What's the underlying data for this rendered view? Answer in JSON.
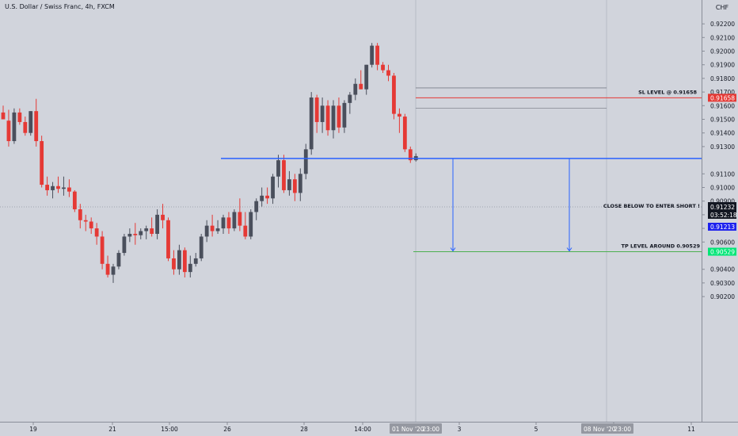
{
  "header": {
    "symbol_title": "U.S. Dollar / Swiss Franc, 4h, FXCM"
  },
  "price_axis": {
    "currency": "CHF",
    "ticks": [
      "0.92200",
      "0.92100",
      "0.92000",
      "0.91900",
      "0.91800",
      "0.91700",
      "0.91600",
      "0.91500",
      "0.91400",
      "0.91300",
      "0.91100",
      "0.91000",
      "0.90900",
      "0.90800",
      "0.90700",
      "0.90600",
      "0.90400",
      "0.90300",
      "0.90200"
    ]
  },
  "time_axis": {
    "ticks": [
      "19",
      "21",
      "15:00",
      "26",
      "28",
      "14:00",
      "3",
      "5",
      "9",
      "11"
    ],
    "badges": [
      {
        "label": "01 Nov '20",
        "time": "23:00"
      },
      {
        "label": "08 Nov '20",
        "time": "23:00"
      }
    ],
    "hidden_tick": "Nov"
  },
  "annotations": {
    "sl_label": "SL LEVEL @ 0.91658",
    "entry_label": "CLOSE BELOW TO ENTER SHORT !",
    "tp_label": "TP LEVEL AROUND 0.90529"
  },
  "price_tags": {
    "sl": "0.91658",
    "last": "0.91232",
    "countdown": "03:52:18",
    "entry": "0.91213",
    "tp": "0.90529"
  },
  "colors": {
    "background": "#d1d4dc",
    "bull": "#4a4f5c",
    "bear": "#e53935",
    "entry_line": "#2962ff",
    "sl_line": "#e53935",
    "tp_line": "#4caf50"
  },
  "chart_data": {
    "type": "candlestick",
    "title": "U.S. Dollar / Swiss Franc, 4h, FXCM",
    "ylim": [
      0.9014,
      0.9232
    ],
    "levels": {
      "stop_loss": 0.91658,
      "entry": 0.91213,
      "take_profit": 0.90529,
      "last_price": 0.91232,
      "upper_range": 0.9173,
      "lower_range": 0.9158
    },
    "candles": [
      {
        "o": 0.9155,
        "h": 0.916,
        "l": 0.915,
        "c": 0.915
      },
      {
        "o": 0.9149,
        "h": 0.9157,
        "l": 0.913,
        "c": 0.9134
      },
      {
        "o": 0.9134,
        "h": 0.9158,
        "l": 0.9132,
        "c": 0.9155
      },
      {
        "o": 0.9155,
        "h": 0.9158,
        "l": 0.9146,
        "c": 0.9148
      },
      {
        "o": 0.9148,
        "h": 0.9152,
        "l": 0.9138,
        "c": 0.914
      },
      {
        "o": 0.914,
        "h": 0.9156,
        "l": 0.9138,
        "c": 0.9156
      },
      {
        "o": 0.9156,
        "h": 0.9165,
        "l": 0.913,
        "c": 0.9134
      },
      {
        "o": 0.9134,
        "h": 0.9138,
        "l": 0.91,
        "c": 0.9102
      },
      {
        "o": 0.9102,
        "h": 0.9108,
        "l": 0.9094,
        "c": 0.9098
      },
      {
        "o": 0.9098,
        "h": 0.9104,
        "l": 0.9092,
        "c": 0.9101
      },
      {
        "o": 0.9101,
        "h": 0.9108,
        "l": 0.9096,
        "c": 0.9099
      },
      {
        "o": 0.9099,
        "h": 0.9108,
        "l": 0.9094,
        "c": 0.91
      },
      {
        "o": 0.91,
        "h": 0.9106,
        "l": 0.9093,
        "c": 0.9097
      },
      {
        "o": 0.9097,
        "h": 0.9098,
        "l": 0.9082,
        "c": 0.9084
      },
      {
        "o": 0.9084,
        "h": 0.9088,
        "l": 0.907,
        "c": 0.9076
      },
      {
        "o": 0.9076,
        "h": 0.908,
        "l": 0.9068,
        "c": 0.9075
      },
      {
        "o": 0.9075,
        "h": 0.9078,
        "l": 0.9066,
        "c": 0.907
      },
      {
        "o": 0.907,
        "h": 0.9074,
        "l": 0.9058,
        "c": 0.9064
      },
      {
        "o": 0.9064,
        "h": 0.9068,
        "l": 0.904,
        "c": 0.9044
      },
      {
        "o": 0.9044,
        "h": 0.905,
        "l": 0.9034,
        "c": 0.9036
      },
      {
        "o": 0.9036,
        "h": 0.9044,
        "l": 0.903,
        "c": 0.9042
      },
      {
        "o": 0.9042,
        "h": 0.9054,
        "l": 0.904,
        "c": 0.9052
      },
      {
        "o": 0.9052,
        "h": 0.9066,
        "l": 0.905,
        "c": 0.9064
      },
      {
        "o": 0.9064,
        "h": 0.907,
        "l": 0.906,
        "c": 0.9066
      },
      {
        "o": 0.9066,
        "h": 0.9074,
        "l": 0.9058,
        "c": 0.9065
      },
      {
        "o": 0.9065,
        "h": 0.907,
        "l": 0.9062,
        "c": 0.9068
      },
      {
        "o": 0.9068,
        "h": 0.9072,
        "l": 0.9062,
        "c": 0.907
      },
      {
        "o": 0.907,
        "h": 0.9078,
        "l": 0.9064,
        "c": 0.9066
      },
      {
        "o": 0.9066,
        "h": 0.9084,
        "l": 0.9062,
        "c": 0.908
      },
      {
        "o": 0.908,
        "h": 0.9088,
        "l": 0.907,
        "c": 0.9076
      },
      {
        "o": 0.9076,
        "h": 0.9078,
        "l": 0.9046,
        "c": 0.9048
      },
      {
        "o": 0.9048,
        "h": 0.9054,
        "l": 0.9036,
        "c": 0.904
      },
      {
        "o": 0.904,
        "h": 0.9058,
        "l": 0.9036,
        "c": 0.9054
      },
      {
        "o": 0.9054,
        "h": 0.9056,
        "l": 0.9034,
        "c": 0.9038
      },
      {
        "o": 0.9038,
        "h": 0.905,
        "l": 0.9034,
        "c": 0.9044
      },
      {
        "o": 0.9044,
        "h": 0.9052,
        "l": 0.9042,
        "c": 0.9048
      },
      {
        "o": 0.9048,
        "h": 0.9066,
        "l": 0.9046,
        "c": 0.9064
      },
      {
        "o": 0.9064,
        "h": 0.9076,
        "l": 0.906,
        "c": 0.9072
      },
      {
        "o": 0.9072,
        "h": 0.908,
        "l": 0.9064,
        "c": 0.9068
      },
      {
        "o": 0.9068,
        "h": 0.9076,
        "l": 0.9066,
        "c": 0.907
      },
      {
        "o": 0.907,
        "h": 0.908,
        "l": 0.9066,
        "c": 0.9078
      },
      {
        "o": 0.9078,
        "h": 0.9082,
        "l": 0.9066,
        "c": 0.907
      },
      {
        "o": 0.907,
        "h": 0.9084,
        "l": 0.9068,
        "c": 0.9082
      },
      {
        "o": 0.9082,
        "h": 0.9092,
        "l": 0.9068,
        "c": 0.9072
      },
      {
        "o": 0.9072,
        "h": 0.9082,
        "l": 0.9062,
        "c": 0.9064
      },
      {
        "o": 0.9064,
        "h": 0.9084,
        "l": 0.9062,
        "c": 0.9082
      },
      {
        "o": 0.9082,
        "h": 0.9092,
        "l": 0.9076,
        "c": 0.909
      },
      {
        "o": 0.909,
        "h": 0.91,
        "l": 0.9086,
        "c": 0.9094
      },
      {
        "o": 0.9094,
        "h": 0.91,
        "l": 0.9088,
        "c": 0.9092
      },
      {
        "o": 0.9092,
        "h": 0.911,
        "l": 0.9088,
        "c": 0.9108
      },
      {
        "o": 0.9108,
        "h": 0.9124,
        "l": 0.91,
        "c": 0.912
      },
      {
        "o": 0.912,
        "h": 0.9124,
        "l": 0.9096,
        "c": 0.9098
      },
      {
        "o": 0.9098,
        "h": 0.9112,
        "l": 0.9094,
        "c": 0.9106
      },
      {
        "o": 0.9106,
        "h": 0.911,
        "l": 0.909,
        "c": 0.9096
      },
      {
        "o": 0.9096,
        "h": 0.9114,
        "l": 0.909,
        "c": 0.911
      },
      {
        "o": 0.911,
        "h": 0.9132,
        "l": 0.9106,
        "c": 0.9128
      },
      {
        "o": 0.9128,
        "h": 0.917,
        "l": 0.9124,
        "c": 0.9166
      },
      {
        "o": 0.9166,
        "h": 0.9168,
        "l": 0.914,
        "c": 0.9148
      },
      {
        "o": 0.9148,
        "h": 0.9166,
        "l": 0.914,
        "c": 0.916
      },
      {
        "o": 0.916,
        "h": 0.9164,
        "l": 0.9138,
        "c": 0.9142
      },
      {
        "o": 0.9142,
        "h": 0.9164,
        "l": 0.9136,
        "c": 0.916
      },
      {
        "o": 0.916,
        "h": 0.9166,
        "l": 0.914,
        "c": 0.9144
      },
      {
        "o": 0.9144,
        "h": 0.9164,
        "l": 0.914,
        "c": 0.9162
      },
      {
        "o": 0.9162,
        "h": 0.917,
        "l": 0.9154,
        "c": 0.9168
      },
      {
        "o": 0.9168,
        "h": 0.918,
        "l": 0.9164,
        "c": 0.9176
      },
      {
        "o": 0.9176,
        "h": 0.9186,
        "l": 0.9172,
        "c": 0.9172
      },
      {
        "o": 0.9172,
        "h": 0.919,
        "l": 0.9168,
        "c": 0.919
      },
      {
        "o": 0.919,
        "h": 0.9206,
        "l": 0.9188,
        "c": 0.9204
      },
      {
        "o": 0.9204,
        "h": 0.9206,
        "l": 0.9186,
        "c": 0.919
      },
      {
        "o": 0.919,
        "h": 0.9192,
        "l": 0.9184,
        "c": 0.9186
      },
      {
        "o": 0.9186,
        "h": 0.919,
        "l": 0.9178,
        "c": 0.9182
      },
      {
        "o": 0.9182,
        "h": 0.9184,
        "l": 0.915,
        "c": 0.9154
      },
      {
        "o": 0.9154,
        "h": 0.9158,
        "l": 0.914,
        "c": 0.9152
      },
      {
        "o": 0.9152,
        "h": 0.9154,
        "l": 0.9126,
        "c": 0.9128
      },
      {
        "o": 0.9128,
        "h": 0.913,
        "l": 0.9118,
        "c": 0.912
      },
      {
        "o": 0.912,
        "h": 0.9125,
        "l": 0.9119,
        "c": 0.9123
      }
    ]
  }
}
